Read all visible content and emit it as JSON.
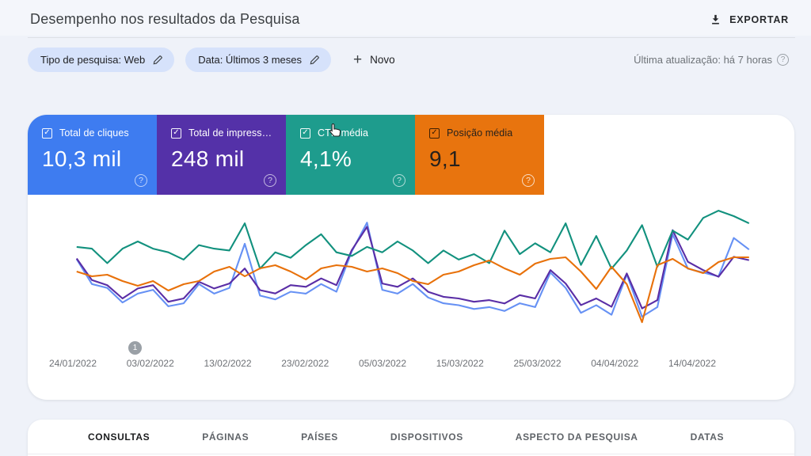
{
  "header": {
    "title": "Desempenho nos resultados da Pesquisa",
    "export_label": "EXPORTAR"
  },
  "filters": {
    "chips": [
      {
        "label": "Tipo de pesquisa: Web"
      },
      {
        "label": "Data: Últimos 3 meses"
      }
    ],
    "new_label": "Novo",
    "last_update": "Última atualização: há 7 horas",
    "help_glyph": "?"
  },
  "metric_cards": [
    {
      "label": "Total de cliques",
      "value": "10,3 mil",
      "color": "#3e7cf0",
      "checked": true
    },
    {
      "label": "Total de impress…",
      "value": "248 mil",
      "color": "#5431a8",
      "checked": true
    },
    {
      "label": "CTR média",
      "value": "4,1%",
      "color": "#1e9c8d",
      "checked": true
    },
    {
      "label": "Posição média",
      "value": "9,1",
      "color": "#e8740e",
      "checked": true
    }
  ],
  "check_glyph": "✓",
  "annotation": {
    "label": "1"
  },
  "chart_data": {
    "type": "line",
    "x_tick_labels": [
      "24/01/2022",
      "03/02/2022",
      "13/02/2022",
      "23/02/2022",
      "05/03/2022",
      "15/03/2022",
      "25/03/2022",
      "04/04/2022",
      "14/04/2022"
    ],
    "x_range": [
      "24/01/2022",
      "20/04/2022"
    ],
    "grid": false,
    "legend_position": "cards-top",
    "series": [
      {
        "name": "Total de cliques",
        "color": "#6691f4",
        "unit": "clicks/day",
        "min": 0,
        "max": 330,
        "invert": false,
        "values": [
          185,
          120,
          110,
          72,
          95,
          105,
          62,
          70,
          120,
          95,
          110,
          225,
          90,
          80,
          100,
          95,
          120,
          100,
          205,
          280,
          105,
          95,
          120,
          85,
          70,
          65,
          55,
          60,
          50,
          70,
          60,
          150,
          110,
          45,
          65,
          40,
          145,
          35,
          60,
          250,
          160,
          150,
          140,
          240,
          210
        ]
      },
      {
        "name": "Total de impressões",
        "color": "#5a2ea6",
        "unit": "impressions/day",
        "min": 0,
        "max": 7600,
        "invert": false,
        "values": [
          4300,
          3000,
          2700,
          1900,
          2500,
          2700,
          1700,
          1900,
          2900,
          2500,
          2800,
          3700,
          2400,
          2200,
          2700,
          2600,
          3100,
          2700,
          4800,
          6200,
          2800,
          2600,
          3100,
          2300,
          2000,
          1900,
          1700,
          1800,
          1600,
          2100,
          1900,
          3600,
          2800,
          1500,
          1900,
          1400,
          3400,
          1300,
          1800,
          6000,
          4100,
          3600,
          3200,
          4400,
          4200
        ]
      },
      {
        "name": "CTR média",
        "color": "#12917e",
        "unit": "%",
        "min": 0,
        "max": 7,
        "invert": false,
        "values": [
          4.6,
          4.5,
          3.7,
          4.5,
          4.9,
          4.5,
          4.3,
          3.9,
          4.7,
          4.5,
          4.4,
          5.9,
          3.4,
          4.3,
          4.0,
          4.7,
          5.3,
          4.3,
          4.1,
          4.6,
          4.3,
          4.9,
          4.4,
          3.7,
          4.4,
          3.9,
          4.2,
          3.7,
          5.5,
          4.2,
          4.8,
          4.3,
          5.9,
          3.6,
          5.2,
          3.4,
          4.4,
          5.8,
          3.5,
          5.5,
          5.0,
          6.2,
          6.6,
          6.3,
          5.9
        ]
      },
      {
        "name": "Posição média",
        "color": "#e8710a",
        "unit": "position",
        "min": 5,
        "max": 13,
        "invert": true,
        "values": [
          9.3,
          9.6,
          9.5,
          9.9,
          10.2,
          9.9,
          10.5,
          10.1,
          9.9,
          9.3,
          9.0,
          9.6,
          9.1,
          8.9,
          9.3,
          9.8,
          9.1,
          8.9,
          9.0,
          9.3,
          9.1,
          9.4,
          9.9,
          10.1,
          9.5,
          9.3,
          8.9,
          8.6,
          9.1,
          9.5,
          8.8,
          8.5,
          8.4,
          9.3,
          10.4,
          9.0,
          10.1,
          12.5,
          8.9,
          8.5,
          9.1,
          9.4,
          8.7,
          8.4,
          8.4
        ]
      }
    ]
  },
  "tabs": [
    {
      "label": "CONSULTAS",
      "active": true
    },
    {
      "label": "PÁGINAS",
      "active": false
    },
    {
      "label": "PAÍSES",
      "active": false
    },
    {
      "label": "DISPOSITIVOS",
      "active": false
    },
    {
      "label": "ASPECTO DA PESQUISA",
      "active": false
    },
    {
      "label": "DATAS",
      "active": false
    }
  ]
}
